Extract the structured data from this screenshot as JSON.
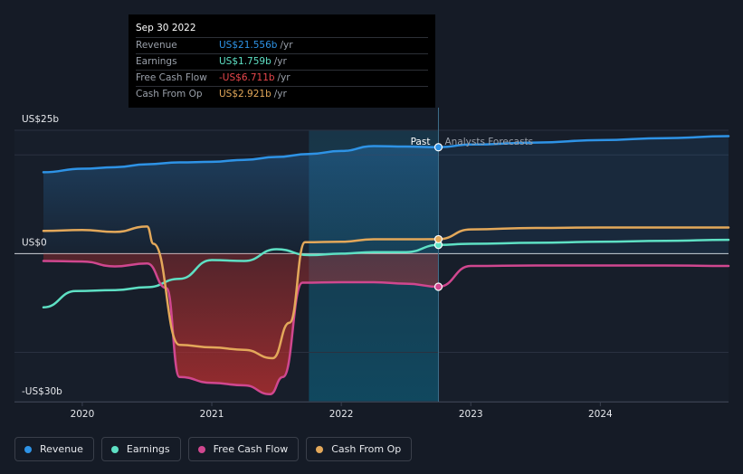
{
  "chart_data": {
    "type": "line",
    "x_unit": "year",
    "xlim": [
      2019.7,
      2024.99
    ],
    "ylim": [
      -30,
      25
    ],
    "y_unit": "US$ billions",
    "y_tick_labels": [
      {
        "value": 25,
        "label": "US$25b"
      },
      {
        "value": 0,
        "label": "US$0"
      },
      {
        "value": -30,
        "label": "-US$30b"
      }
    ],
    "x_tick_labels": [
      {
        "value": 2020,
        "label": "2020"
      },
      {
        "value": 2021,
        "label": "2021"
      },
      {
        "value": 2022,
        "label": "2022"
      },
      {
        "value": 2023,
        "label": "2023"
      },
      {
        "value": 2024,
        "label": "2024"
      }
    ],
    "split_year": 2022.75,
    "highlight_start": 2021.75,
    "past_label": "Past",
    "forecast_label": "Analysts Forecasts",
    "series": [
      {
        "key": "revenue",
        "name": "Revenue",
        "color": "#2e93e6",
        "fill": true,
        "points": [
          [
            2019.7,
            16.5
          ],
          [
            2020.0,
            17.2
          ],
          [
            2020.25,
            17.5
          ],
          [
            2020.5,
            18.1
          ],
          [
            2020.75,
            18.5
          ],
          [
            2021.0,
            18.6
          ],
          [
            2021.25,
            19.0
          ],
          [
            2021.5,
            19.6
          ],
          [
            2021.75,
            20.2
          ],
          [
            2022.0,
            20.8
          ],
          [
            2022.25,
            21.8
          ],
          [
            2022.5,
            21.7
          ],
          [
            2022.75,
            21.556
          ],
          [
            2023.0,
            22.1
          ],
          [
            2023.5,
            22.5
          ],
          [
            2024.0,
            23.0
          ],
          [
            2024.5,
            23.4
          ],
          [
            2024.99,
            23.8
          ]
        ]
      },
      {
        "key": "earnings",
        "name": "Earnings",
        "color": "#5ee0c4",
        "fill": false,
        "points": [
          [
            2019.7,
            -10.9
          ],
          [
            2019.95,
            -7.6
          ],
          [
            2020.25,
            -7.4
          ],
          [
            2020.5,
            -6.8
          ],
          [
            2020.75,
            -5.1
          ],
          [
            2021.0,
            -1.3
          ],
          [
            2021.25,
            -1.5
          ],
          [
            2021.5,
            0.9
          ],
          [
            2021.75,
            -0.3
          ],
          [
            2022.0,
            0.0
          ],
          [
            2022.25,
            0.3
          ],
          [
            2022.5,
            0.3
          ],
          [
            2022.75,
            1.759
          ],
          [
            2023.0,
            2.0
          ],
          [
            2023.5,
            2.2
          ],
          [
            2024.0,
            2.4
          ],
          [
            2024.5,
            2.6
          ],
          [
            2024.99,
            2.8
          ]
        ]
      },
      {
        "key": "fcf",
        "name": "Free Cash Flow",
        "color": "#d0478f",
        "fill": true,
        "points": [
          [
            2019.7,
            -1.5
          ],
          [
            2020.0,
            -1.6
          ],
          [
            2020.25,
            -2.6
          ],
          [
            2020.5,
            -2.0
          ],
          [
            2020.65,
            -7.0
          ],
          [
            2020.75,
            -25.0
          ],
          [
            2021.0,
            -26.2
          ],
          [
            2021.25,
            -26.7
          ],
          [
            2021.45,
            -28.5
          ],
          [
            2021.55,
            -25.0
          ],
          [
            2021.7,
            -5.9
          ],
          [
            2022.0,
            -5.8
          ],
          [
            2022.25,
            -5.8
          ],
          [
            2022.5,
            -6.1
          ],
          [
            2022.75,
            -6.711
          ],
          [
            2023.0,
            -2.5
          ],
          [
            2023.5,
            -2.4
          ],
          [
            2024.0,
            -2.4
          ],
          [
            2024.5,
            -2.4
          ],
          [
            2024.99,
            -2.5
          ]
        ]
      },
      {
        "key": "cfo",
        "name": "Cash From Op",
        "color": "#e3a85a",
        "fill": false,
        "points": [
          [
            2019.7,
            4.6
          ],
          [
            2020.0,
            4.8
          ],
          [
            2020.25,
            4.4
          ],
          [
            2020.5,
            5.5
          ],
          [
            2020.55,
            2.0
          ],
          [
            2020.75,
            -18.5
          ],
          [
            2021.0,
            -19.0
          ],
          [
            2021.25,
            -19.5
          ],
          [
            2021.47,
            -21.2
          ],
          [
            2021.6,
            -14.0
          ],
          [
            2021.72,
            2.3
          ],
          [
            2022.0,
            2.4
          ],
          [
            2022.25,
            2.9
          ],
          [
            2022.5,
            2.9
          ],
          [
            2022.75,
            2.921
          ],
          [
            2023.0,
            4.9
          ],
          [
            2023.5,
            5.2
          ],
          [
            2024.0,
            5.3
          ],
          [
            2024.5,
            5.3
          ],
          [
            2024.99,
            5.3
          ]
        ]
      }
    ]
  },
  "tooltip": {
    "date": "Sep 30 2022",
    "unit": "/yr",
    "rows": [
      {
        "label": "Revenue",
        "value": "US$21.556b",
        "color": "#2e93e6"
      },
      {
        "label": "Earnings",
        "value": "US$1.759b",
        "color": "#5ee0c4"
      },
      {
        "label": "Free Cash Flow",
        "value": "-US$6.711b",
        "color": "#e8474c"
      },
      {
        "label": "Cash From Op",
        "value": "US$2.921b",
        "color": "#e3a85a"
      }
    ]
  },
  "legend": [
    {
      "label": "Revenue",
      "color": "#2e93e6"
    },
    {
      "label": "Earnings",
      "color": "#5ee0c4"
    },
    {
      "label": "Free Cash Flow",
      "color": "#d0478f"
    },
    {
      "label": "Cash From Op",
      "color": "#e3a85a"
    }
  ]
}
